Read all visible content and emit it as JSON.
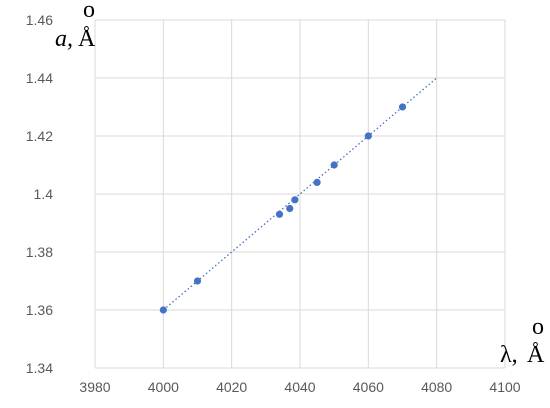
{
  "chart_data": {
    "type": "scatter",
    "title": "",
    "xlabel": "λ, Å",
    "ylabel": "a, Å",
    "xlim": [
      3980,
      4100
    ],
    "ylim": [
      1.34,
      1.46
    ],
    "x_ticks": [
      3980,
      4000,
      4020,
      4040,
      4060,
      4080,
      4100
    ],
    "y_ticks": [
      1.34,
      1.36,
      1.38,
      1.4,
      1.42,
      1.44,
      1.46
    ],
    "x_tick_labels": [
      "3980",
      "4000",
      "4020",
      "4040",
      "4060",
      "4080",
      "4100"
    ],
    "y_tick_labels": [
      "1.34",
      "1.36",
      "1.38",
      "1.4",
      "1.42",
      "1.44",
      "1.46"
    ],
    "grid": true,
    "legend": "none",
    "series": [
      {
        "values": [
          {
            "x": 4000,
            "y": 1.36
          },
          {
            "x": 4010,
            "y": 1.37
          },
          {
            "x": 4034,
            "y": 1.393
          },
          {
            "x": 4037,
            "y": 1.395
          },
          {
            "x": 4038.5,
            "y": 1.398
          },
          {
            "x": 4045,
            "y": 1.404
          },
          {
            "x": 4050,
            "y": 1.41
          },
          {
            "x": 4060,
            "y": 1.42
          },
          {
            "x": 4070,
            "y": 1.43
          }
        ],
        "color": "#4472c4"
      }
    ],
    "trendline": {
      "type": "linear",
      "x_range": [
        4000,
        4080
      ],
      "y_range": [
        1.36,
        1.44
      ],
      "color": "#4472c4",
      "style": "dotted"
    }
  }
}
